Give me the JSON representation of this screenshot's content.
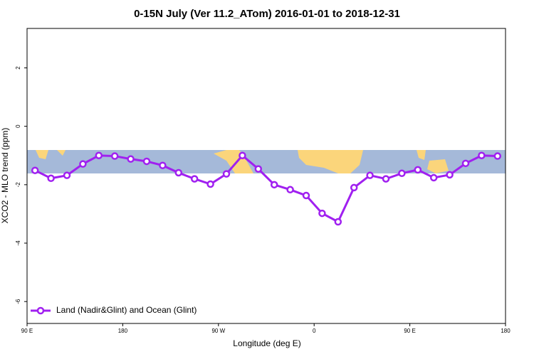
{
  "chart_data": {
    "type": "line",
    "title": "0-15N July (Ver 11.2_ATom)   2016-01-01 to 2018-12-31",
    "xlabel": "Longitude (deg E)",
    "ylabel": "XCO2 - MLO trend (ppm)",
    "x": [
      97.5,
      112.5,
      127.5,
      142.5,
      157.5,
      172.5,
      187.5,
      202.5,
      217.5,
      232.5,
      247.5,
      262.5,
      277.5,
      292.5,
      307.5,
      322.5,
      337.5,
      352.5,
      367.5,
      382.5,
      397.5,
      412.5,
      427.5,
      442.5,
      457.5,
      472.5,
      487.5,
      502.5,
      517.5,
      532.5
    ],
    "series": [
      {
        "name": "Land (Nadir&Glint) and Ocean (Glint)",
        "color": "#a020f0",
        "values": [
          -1.51,
          -1.78,
          -1.68,
          -1.29,
          -1.0,
          -1.02,
          -1.12,
          -1.2,
          -1.34,
          -1.59,
          -1.8,
          -1.98,
          -1.63,
          -1.0,
          -1.46,
          -2.0,
          -2.17,
          -2.37,
          -2.98,
          -3.27,
          -2.1,
          -1.68,
          -1.8,
          -1.61,
          -1.49,
          -1.76,
          -1.66,
          -1.27,
          -1.0,
          -1.02
        ]
      }
    ],
    "xlim": [
      90,
      540
    ],
    "xticks": [
      {
        "value": 90,
        "label": "90 E"
      },
      {
        "value": 180,
        "label": "180"
      },
      {
        "value": 270,
        "label": "90 W"
      },
      {
        "value": 360,
        "label": "0"
      },
      {
        "value": 450,
        "label": "90 E"
      },
      {
        "value": 540,
        "label": "180"
      }
    ],
    "ylim": [
      -6.75,
      3.35
    ],
    "yticks": [
      2,
      0,
      -2,
      -4,
      -6
    ],
    "legend": "bottom-left"
  }
}
